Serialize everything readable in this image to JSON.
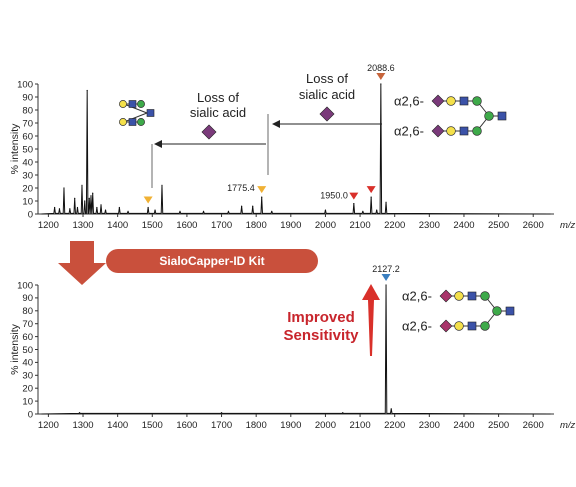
{
  "colors": {
    "trace": "#111111",
    "banner": "#c9503c",
    "big_arrow": "#c9503c",
    "marker_orange": "#f0b134",
    "marker_red": "#d9302a",
    "marker_brown": "#c7643a",
    "marker_blue": "#3a7fc0",
    "improved_text": "#c8252c",
    "sialic_diamond": "#7a3a7a",
    "capped_diamond": "#a8356a",
    "galactose": "#f4e04a",
    "glcnac": "#3b52a8",
    "mannose": "#3eaa4a"
  },
  "banner": {
    "label": "SialoCapper-ID Kit"
  },
  "improved": {
    "line1": "Improved",
    "line2": "Sensitivity"
  },
  "annotations": {
    "loss1": {
      "line1": "Loss of",
      "line2": "sialic acid"
    },
    "loss2": {
      "line1": "Loss of",
      "line2": "sialic acid"
    }
  },
  "glycans": {
    "top": {
      "branch1": "α2,6-",
      "branch2": "α2,6-"
    },
    "bottom": {
      "branch1": "α2,6-",
      "branch2": "α2,6-"
    }
  },
  "chart_data": [
    {
      "type": "line",
      "xlabel": "m/z",
      "ylabel": "% intensity",
      "xlim": [
        1170,
        2660
      ],
      "ylim": [
        0,
        100
      ],
      "xticks": [
        1200,
        1300,
        1400,
        1500,
        1600,
        1700,
        1800,
        1900,
        2000,
        2100,
        2200,
        2300,
        2400,
        2500,
        2600
      ],
      "yticks": [
        0,
        10,
        20,
        30,
        40,
        50,
        60,
        70,
        80,
        90,
        100
      ],
      "peaks": [
        {
          "x": 1218,
          "y": 5
        },
        {
          "x": 1232,
          "y": 4
        },
        {
          "x": 1245,
          "y": 20
        },
        {
          "x": 1262,
          "y": 4
        },
        {
          "x": 1276,
          "y": 12
        },
        {
          "x": 1284,
          "y": 5
        },
        {
          "x": 1297,
          "y": 22
        },
        {
          "x": 1305,
          "y": 10
        },
        {
          "x": 1312,
          "y": 95
        },
        {
          "x": 1318,
          "y": 12
        },
        {
          "x": 1323,
          "y": 14
        },
        {
          "x": 1328,
          "y": 16
        },
        {
          "x": 1340,
          "y": 5
        },
        {
          "x": 1352,
          "y": 7
        },
        {
          "x": 1365,
          "y": 3
        },
        {
          "x": 1405,
          "y": 5
        },
        {
          "x": 1430,
          "y": 2
        },
        {
          "x": 1488,
          "y": 5
        },
        {
          "x": 1508,
          "y": 3
        },
        {
          "x": 1528,
          "y": 22
        },
        {
          "x": 1580,
          "y": 2
        },
        {
          "x": 1648,
          "y": 2
        },
        {
          "x": 1720,
          "y": 2
        },
        {
          "x": 1758,
          "y": 6
        },
        {
          "x": 1790,
          "y": 6
        },
        {
          "x": 1816,
          "y": 13
        },
        {
          "x": 1845,
          "y": 2
        },
        {
          "x": 2000,
          "y": 3
        },
        {
          "x": 2082,
          "y": 8
        },
        {
          "x": 2108,
          "y": 2
        },
        {
          "x": 2132,
          "y": 13
        },
        {
          "x": 2148,
          "y": 3
        },
        {
          "x": 2160,
          "y": 100
        },
        {
          "x": 2175,
          "y": 9
        }
      ],
      "markers": [
        {
          "x": 2160,
          "y": 100,
          "color": "#c7643a",
          "label": "2088.6"
        },
        {
          "x": 1816,
          "y": 13,
          "color": "#f0b134",
          "label": "1775.4"
        },
        {
          "x": 1488,
          "y": 5,
          "color": "#f0b134",
          "label": ""
        },
        {
          "x": 2132,
          "y": 13,
          "color": "#d9302a",
          "label": ""
        },
        {
          "x": 2082,
          "y": 8,
          "color": "#d9302a",
          "label": "1950.0"
        }
      ]
    },
    {
      "type": "line",
      "xlabel": "m/z",
      "ylabel": "% intensity",
      "xlim": [
        1170,
        2660
      ],
      "ylim": [
        0,
        100
      ],
      "xticks": [
        1200,
        1300,
        1400,
        1500,
        1600,
        1700,
        1800,
        1900,
        2000,
        2100,
        2200,
        2300,
        2400,
        2500,
        2600
      ],
      "yticks": [
        0,
        10,
        20,
        30,
        40,
        50,
        60,
        70,
        80,
        90,
        100
      ],
      "peaks": [
        {
          "x": 1290,
          "y": 1
        },
        {
          "x": 1700,
          "y": 1
        },
        {
          "x": 2050,
          "y": 1
        },
        {
          "x": 2175,
          "y": 100
        },
        {
          "x": 2190,
          "y": 4
        }
      ],
      "markers": [
        {
          "x": 2175,
          "y": 100,
          "color": "#3a7fc0",
          "label": "2127.2"
        }
      ]
    }
  ]
}
